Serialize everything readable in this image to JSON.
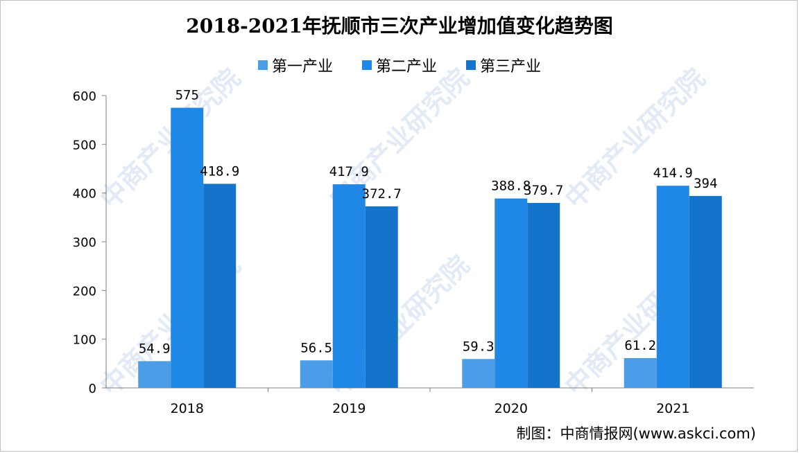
{
  "title": "2018-2021年抚顺市三次产业增加值变化趋势图",
  "credit": "制图：中商情报网(www.askci.com)",
  "watermark": "中商产业研究院",
  "chart_data": {
    "type": "bar",
    "title": "2018-2021年抚顺市三次产业增加值变化趋势图",
    "categories": [
      "2018",
      "2019",
      "2020",
      "2021"
    ],
    "series": [
      {
        "name": "第一产业",
        "values": [
          54.9,
          56.5,
          59.3,
          61.2
        ],
        "labels": [
          "54.9",
          "56.5",
          "59.3",
          "61.2"
        ],
        "color": "#4a9de6"
      },
      {
        "name": "第二产业",
        "values": [
          575,
          417.9,
          388.8,
          414.9
        ],
        "labels": [
          "575",
          "417.9",
          "388.8",
          "414.9"
        ],
        "color": "#1f87e6"
      },
      {
        "name": "第三产业",
        "values": [
          418.9,
          372.7,
          379.7,
          394
        ],
        "labels": [
          "418.9",
          "372.7",
          "379.7",
          "394"
        ],
        "color": "#1474cc"
      }
    ],
    "xlabel": "",
    "ylabel": "",
    "ylim": [
      0,
      600
    ],
    "yticks": [
      "0",
      "100",
      "200",
      "300",
      "400",
      "500",
      "600"
    ],
    "grid": false,
    "legend_position": "top"
  }
}
